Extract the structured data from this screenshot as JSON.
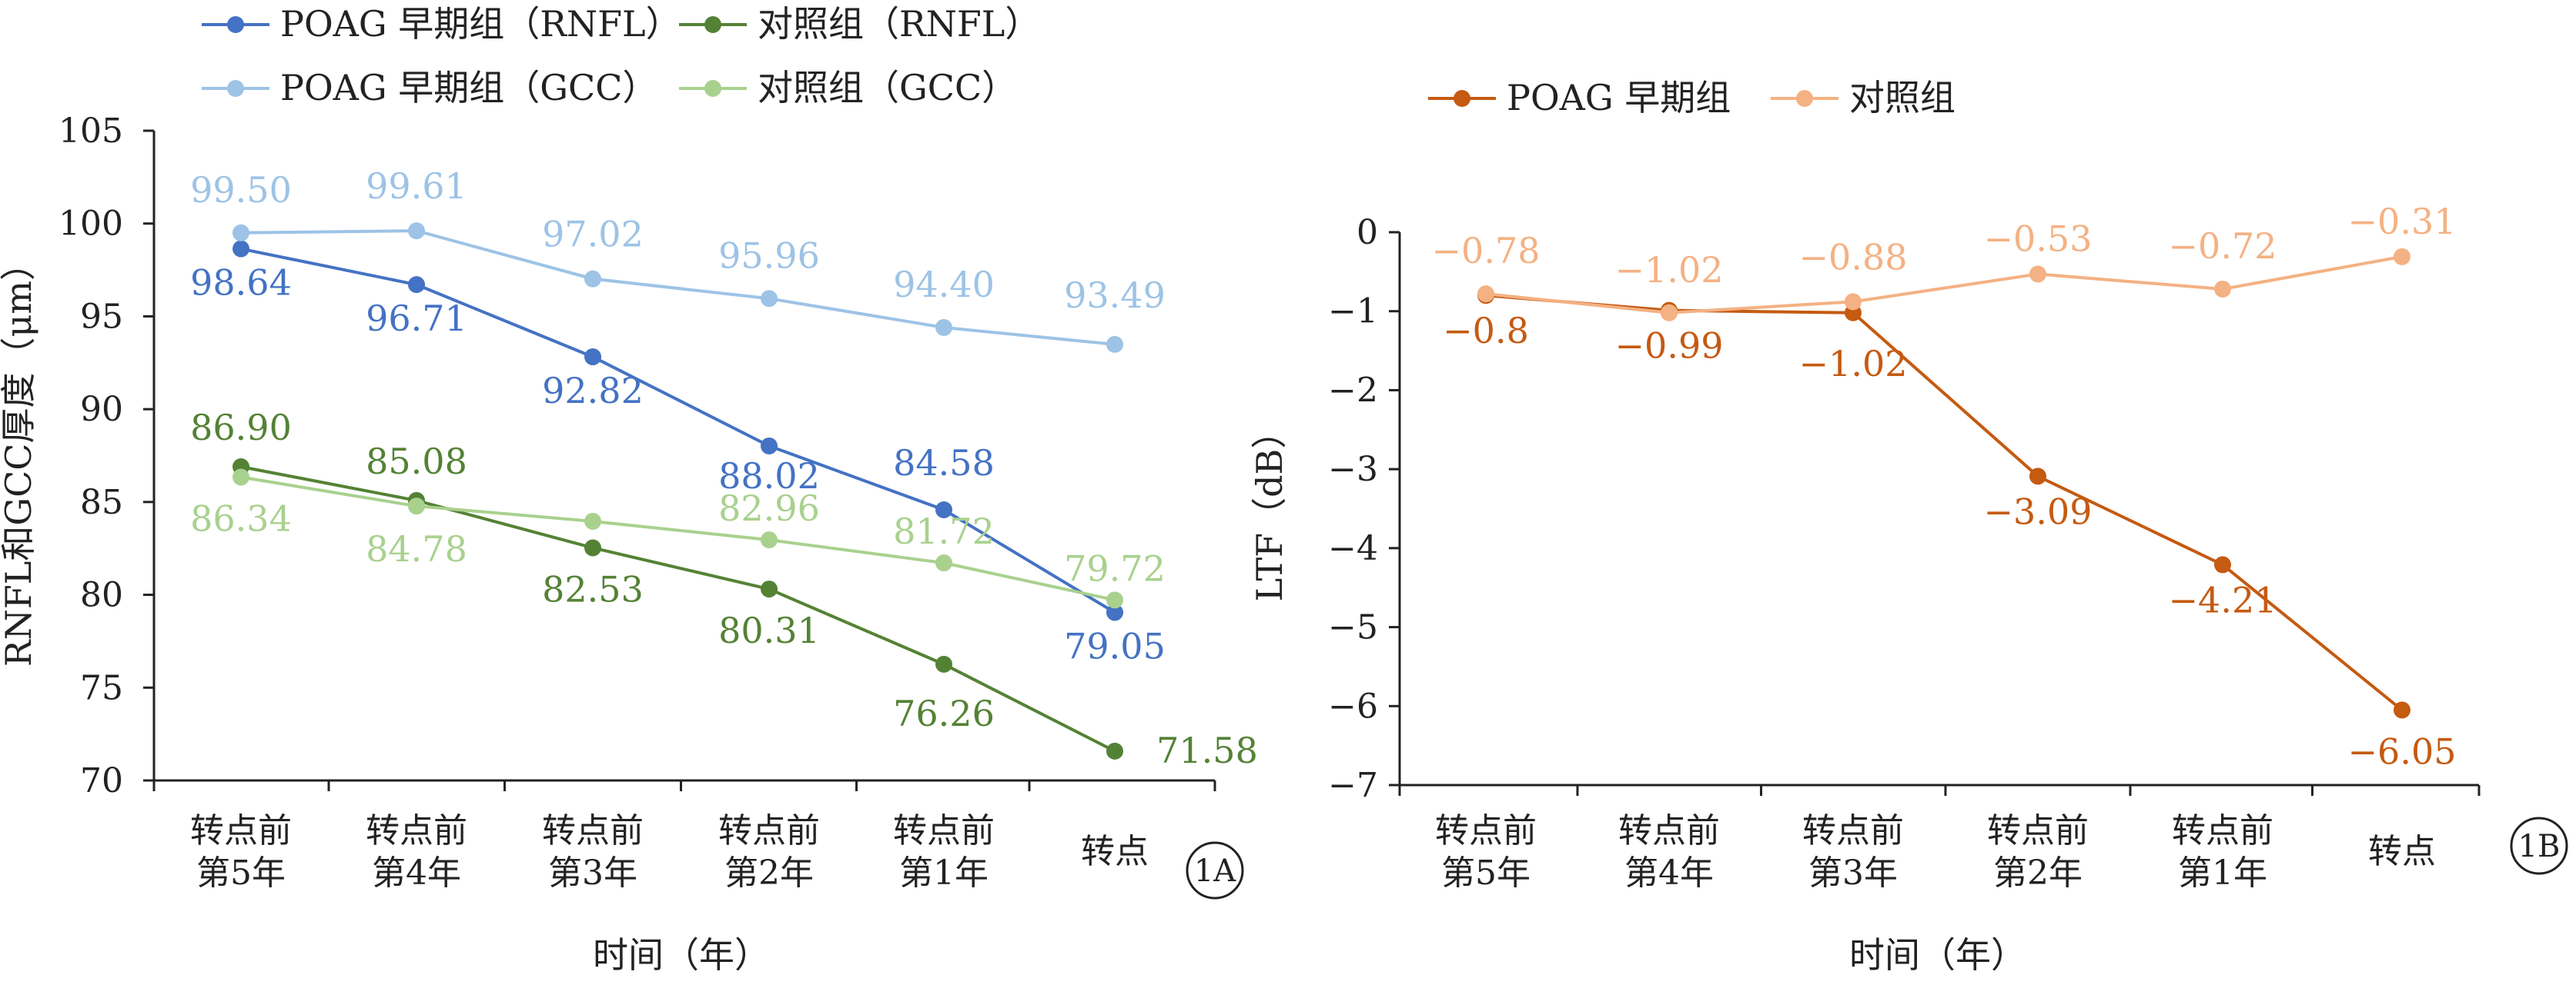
{
  "chart_data": [
    {
      "type": "line",
      "panel_label": "1A",
      "categories": [
        [
          "转点前",
          "第5年"
        ],
        [
          "转点前",
          "第4年"
        ],
        [
          "转点前",
          "第3年"
        ],
        [
          "转点前",
          "第2年"
        ],
        [
          "转点前",
          "第1年"
        ],
        [
          "转点"
        ]
      ],
      "xlabel": "时间（年）",
      "ylabel": "RNFL和GCC厚度（μm）",
      "ylim": [
        70,
        105
      ],
      "yticks": [
        70,
        75,
        80,
        85,
        90,
        95,
        100,
        105
      ],
      "grid": false,
      "legend_position": "top-left",
      "series": [
        {
          "name": "POAG 早期组（RNFL）",
          "color": "#4472C4",
          "values": [
            98.64,
            96.71,
            92.82,
            88.02,
            84.58,
            79.05
          ],
          "labels": [
            "98.64",
            "96.71",
            "92.82",
            "88.02",
            "84.58",
            "79.05"
          ]
        },
        {
          "name": "对照组（RNFL）",
          "color": "#548235",
          "values": [
            86.9,
            85.08,
            82.53,
            80.31,
            76.26,
            71.58
          ],
          "labels": [
            "86.90",
            "85.08",
            "82.53",
            "80.31",
            "76.26",
            "71.58"
          ]
        },
        {
          "name": "POAG 早期组（GCC）",
          "color": "#9DC3E6",
          "values": [
            99.5,
            99.61,
            97.02,
            95.96,
            94.4,
            93.49
          ],
          "labels": [
            "99.50",
            "99.61",
            "97.02",
            "95.96",
            "94.40",
            "93.49"
          ]
        },
        {
          "name": "对照组（GCC）",
          "color": "#A9D18E",
          "values": [
            86.34,
            84.78,
            83.96,
            82.96,
            81.72,
            79.72
          ],
          "labels": [
            "86.34",
            "84.78",
            "",
            "82.96",
            "81.72",
            "79.72"
          ]
        }
      ]
    },
    {
      "type": "line",
      "panel_label": "1B",
      "categories": [
        [
          "转点前",
          "第5年"
        ],
        [
          "转点前",
          "第4年"
        ],
        [
          "转点前",
          "第3年"
        ],
        [
          "转点前",
          "第2年"
        ],
        [
          "转点前",
          "第1年"
        ],
        [
          "转点"
        ]
      ],
      "xlabel": "时间（年）",
      "ylabel": "LTF（dB）",
      "ylim": [
        -7,
        0
      ],
      "yticks": [
        0,
        -1,
        -2,
        -3,
        -4,
        -5,
        -6,
        -7
      ],
      "ytick_labels": [
        "0",
        "−1",
        "−2",
        "−3",
        "−4",
        "−5",
        "−6",
        "−7"
      ],
      "grid": false,
      "legend_position": "top",
      "series": [
        {
          "name": "POAG 早期组",
          "color": "#C55A11",
          "values": [
            -0.8,
            -0.99,
            -1.02,
            -3.09,
            -4.21,
            -6.05
          ],
          "labels": [
            "−0.8",
            "−0.99",
            "−1.02",
            "−3.09",
            "−4.21",
            "−6.05"
          ]
        },
        {
          "name": "对照组",
          "color": "#F4B183",
          "values": [
            -0.78,
            -1.02,
            -0.88,
            -0.53,
            -0.72,
            -0.31
          ],
          "labels": [
            "−0.78",
            "−1.02",
            "−0.88",
            "−0.53",
            "−0.72",
            "−0.31"
          ]
        }
      ]
    }
  ]
}
